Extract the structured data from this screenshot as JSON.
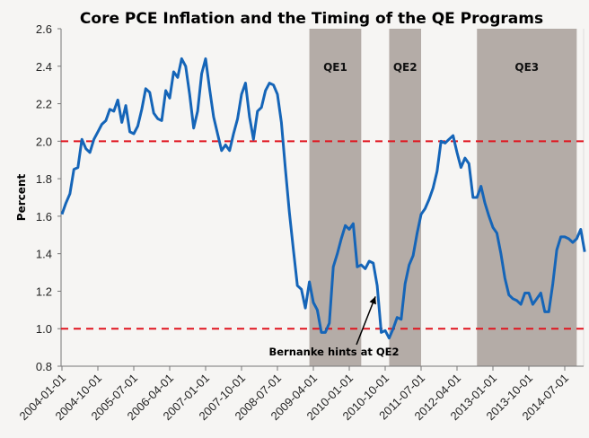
{
  "chart_data": {
    "type": "line",
    "title": "Core PCE Inflation and the Timing of the QE Programs",
    "xlabel": "",
    "ylabel": "Percent",
    "ylim": [
      0.8,
      2.6
    ],
    "yticks": [
      "0.8",
      "1.0",
      "1.2",
      "1.4",
      "1.6",
      "1.8",
      "2.0",
      "2.2",
      "2.4",
      "2.6"
    ],
    "x_start": "2004-01-01",
    "x_frequency": "monthly",
    "xtick_labels": [
      "2004-01-01",
      "2004-10-01",
      "2005-07-01",
      "2006-04-01",
      "2007-01-01",
      "2007-10-01",
      "2008-07-01",
      "2009-04-01",
      "2010-01-01",
      "2010-10-01",
      "2011-07-01",
      "2012-04-01",
      "2013-01-01",
      "2013-10-01",
      "2014-07-01"
    ],
    "grid": false,
    "reference_lines": [
      {
        "value": 2.0,
        "color": "#e0141e",
        "style": "dashed"
      },
      {
        "value": 1.0,
        "color": "#e0141e",
        "style": "dashed"
      }
    ],
    "shaded_periods": [
      {
        "label": "QE1",
        "start_month_index": 62,
        "end_month_index": 75
      },
      {
        "label": "QE2",
        "start_month_index": 82,
        "end_month_index": 90
      },
      {
        "label": "QE3",
        "start_month_index": 104,
        "end_month_index": 129
      }
    ],
    "annotations": [
      {
        "text": "Bernanke hints at QE2",
        "month_index": 79,
        "value": 1.21
      }
    ],
    "series": [
      {
        "name": "Core PCE Inflation",
        "color": "#1565b8",
        "values": [
          1.61,
          1.67,
          1.72,
          1.85,
          1.86,
          2.01,
          1.96,
          1.94,
          2.01,
          2.05,
          2.09,
          2.11,
          2.17,
          2.16,
          2.22,
          2.1,
          2.19,
          2.05,
          2.04,
          2.08,
          2.17,
          2.28,
          2.26,
          2.15,
          2.12,
          2.11,
          2.27,
          2.23,
          2.37,
          2.34,
          2.44,
          2.4,
          2.25,
          2.07,
          2.16,
          2.36,
          2.44,
          2.28,
          2.13,
          2.04,
          1.95,
          1.98,
          1.95,
          2.04,
          2.12,
          2.25,
          2.31,
          2.13,
          2.01,
          2.16,
          2.18,
          2.27,
          2.31,
          2.3,
          2.25,
          2.1,
          1.85,
          1.62,
          1.42,
          1.23,
          1.21,
          1.11,
          1.25,
          1.14,
          1.1,
          0.98,
          0.98,
          1.03,
          1.33,
          1.4,
          1.48,
          1.55,
          1.53,
          1.56,
          1.33,
          1.34,
          1.32,
          1.36,
          1.35,
          1.23,
          0.98,
          0.99,
          0.95,
          1.0,
          1.06,
          1.05,
          1.24,
          1.34,
          1.39,
          1.51,
          1.61,
          1.64,
          1.69,
          1.75,
          1.84,
          2.0,
          1.99,
          2.01,
          2.03,
          1.94,
          1.86,
          1.91,
          1.88,
          1.7,
          1.7,
          1.76,
          1.67,
          1.6,
          1.54,
          1.51,
          1.4,
          1.27,
          1.18,
          1.16,
          1.15,
          1.13,
          1.19,
          1.19,
          1.13,
          1.16,
          1.19,
          1.09,
          1.09,
          1.24,
          1.42,
          1.49,
          1.49,
          1.48,
          1.46,
          1.48,
          1.53,
          1.41
        ]
      }
    ]
  }
}
